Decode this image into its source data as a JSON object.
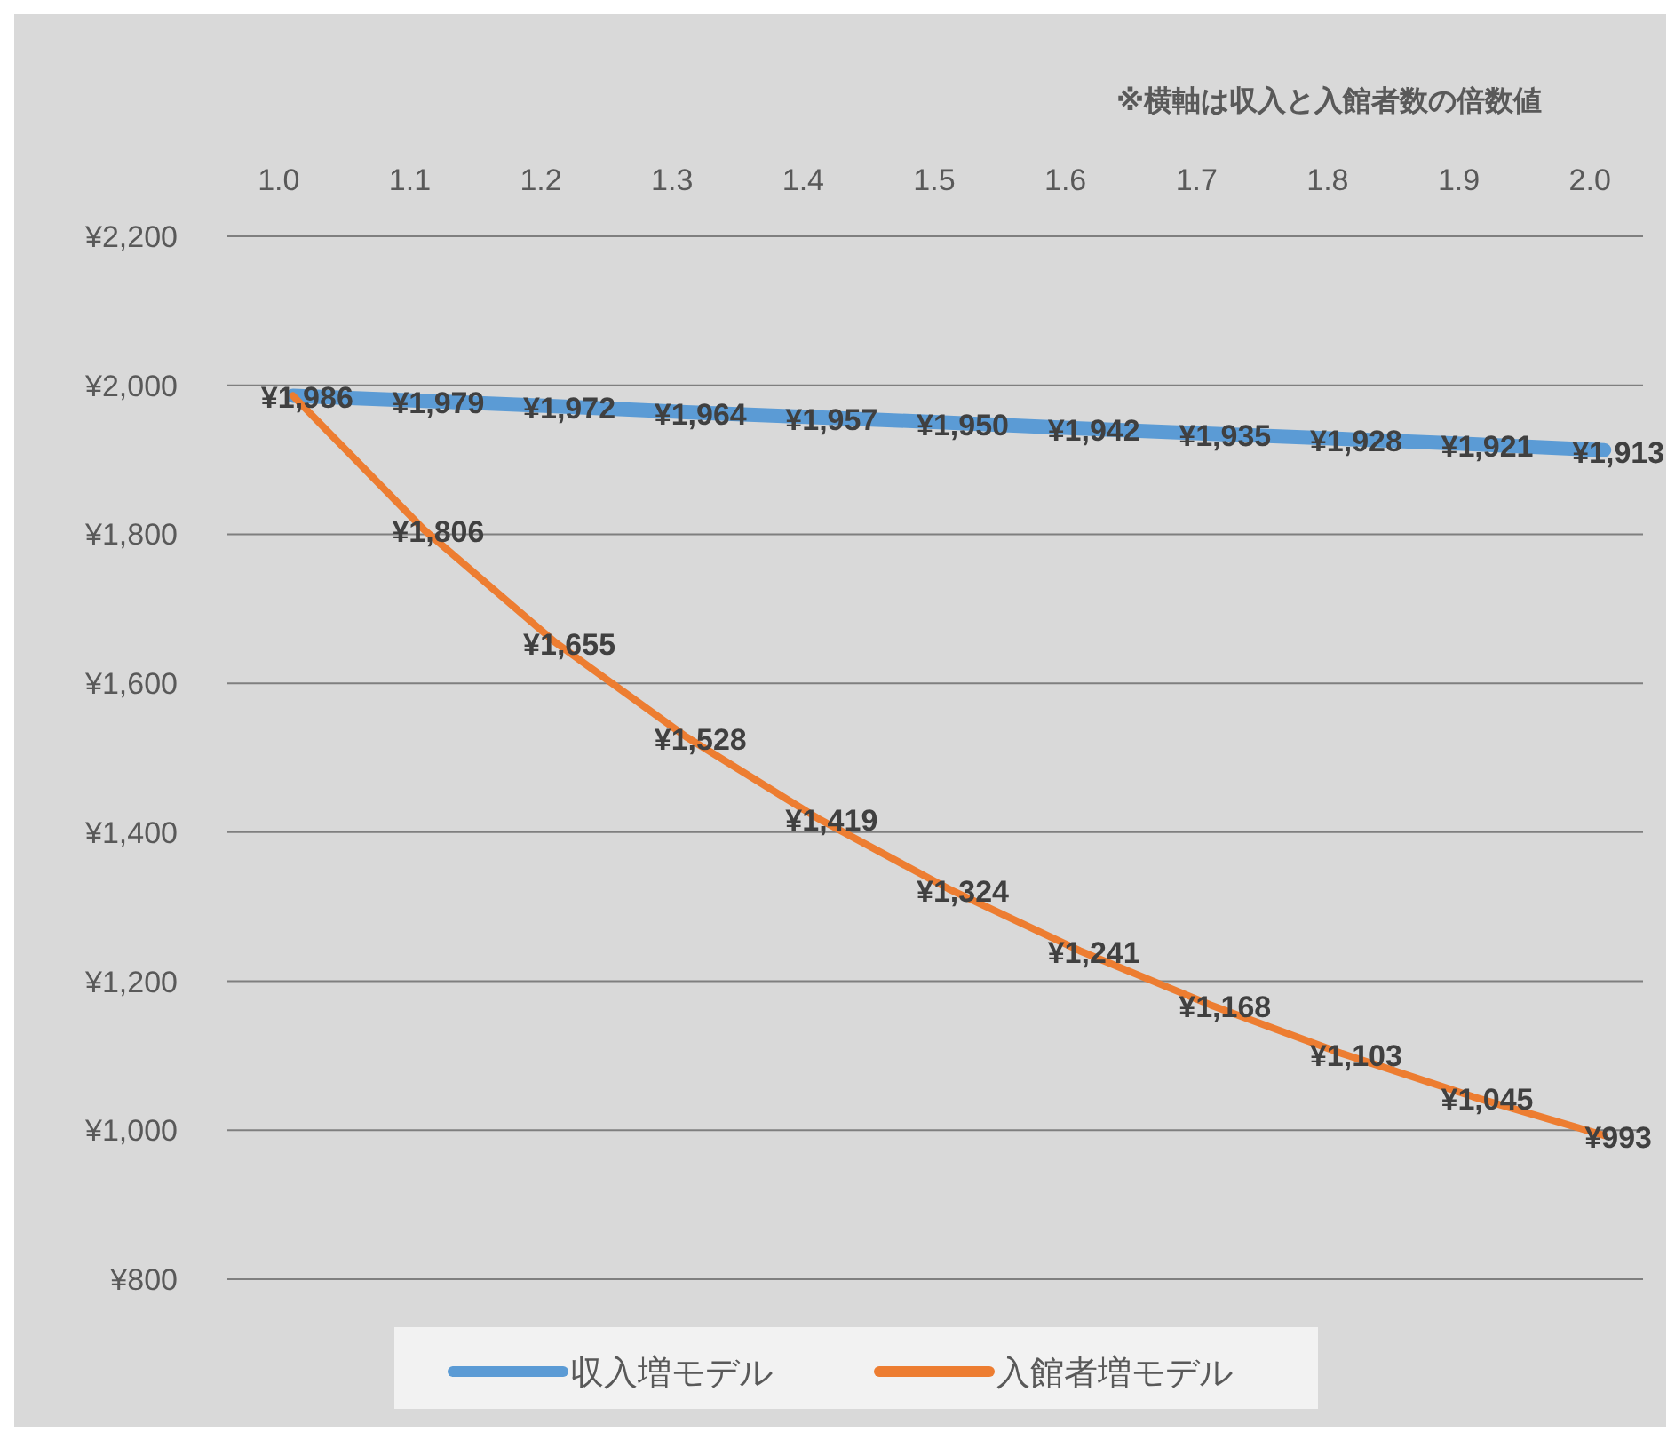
{
  "chart_data": {
    "type": "line",
    "annotations": [
      "※横軸は収入と入館者数の倍数値"
    ],
    "categories": [
      "1.0",
      "1.1",
      "1.2",
      "1.3",
      "1.4",
      "1.5",
      "1.6",
      "1.7",
      "1.8",
      "1.9",
      "2.0"
    ],
    "series": [
      {
        "name": "収入増モデル",
        "color": "#5b9bd5",
        "values": [
          1986,
          1979,
          1972,
          1964,
          1957,
          1950,
          1942,
          1935,
          1928,
          1921,
          1913
        ],
        "value_labels": [
          "¥1,986",
          "¥1,979",
          "¥1,972",
          "¥1,964",
          "¥1,957",
          "¥1,950",
          "¥1,942",
          "¥1,935",
          "¥1,928",
          "¥1,921",
          "¥1,913"
        ]
      },
      {
        "name": "入館者増モデル",
        "color": "#ed7d31",
        "values": [
          1986,
          1806,
          1655,
          1528,
          1419,
          1324,
          1241,
          1168,
          1103,
          1045,
          993
        ],
        "value_labels": [
          null,
          "¥1,806",
          "¥1,655",
          "¥1,528",
          "¥1,419",
          "¥1,324",
          "¥1,241",
          "¥1,168",
          "¥1,103",
          "¥1,045",
          "¥993"
        ]
      }
    ],
    "ylim": [
      800,
      2200
    ],
    "yticks": [
      {
        "value": 800,
        "label": "¥800"
      },
      {
        "value": 1000,
        "label": "¥1,000"
      },
      {
        "value": 1200,
        "label": "¥1,200"
      },
      {
        "value": 1400,
        "label": "¥1,400"
      },
      {
        "value": 1600,
        "label": "¥1,600"
      },
      {
        "value": 1800,
        "label": "¥1,800"
      },
      {
        "value": 2000,
        "label": "¥2,000"
      },
      {
        "value": 2200,
        "label": "¥2,200"
      }
    ],
    "grid": "y",
    "legend": "bottom"
  }
}
